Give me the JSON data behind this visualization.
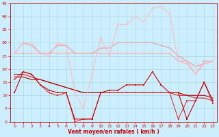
{
  "xlabel": "Vent moyen/en rafales ( km/h )",
  "bg_color": "#cceeff",
  "grid_color": "#aadddd",
  "xlim": [
    -0.5,
    23.5
  ],
  "ylim": [
    0,
    45
  ],
  "yticks": [
    0,
    5,
    10,
    15,
    20,
    25,
    30,
    35,
    40,
    45
  ],
  "xticks": [
    0,
    1,
    2,
    3,
    4,
    5,
    6,
    7,
    8,
    9,
    10,
    11,
    12,
    13,
    14,
    15,
    16,
    17,
    18,
    19,
    20,
    21,
    22,
    23
  ],
  "series": [
    {
      "x": [
        0,
        1,
        2,
        3,
        4,
        5,
        6,
        7,
        8,
        9,
        10,
        11,
        12,
        13,
        14,
        15,
        16,
        17,
        18,
        19,
        20,
        21,
        22,
        23
      ],
      "y": [
        11,
        19,
        18,
        14,
        12,
        11,
        11,
        1,
        1,
        1,
        11,
        12,
        12,
        14,
        14,
        14,
        19,
        14,
        11,
        11,
        1,
        8,
        15,
        8
      ],
      "color": "#cc0000",
      "lw": 0.8,
      "marker": "s",
      "ms": 1.8,
      "zorder": 5
    },
    {
      "x": [
        0,
        1,
        2,
        3,
        4,
        5,
        6,
        7,
        8,
        9,
        10,
        11,
        12,
        13,
        14,
        15,
        16,
        17,
        18,
        19,
        20,
        21,
        22,
        23
      ],
      "y": [
        26,
        26,
        26,
        26,
        26,
        26,
        26,
        26,
        26,
        26,
        26,
        26,
        26,
        26,
        26,
        26,
        26,
        26,
        26,
        23,
        23,
        18,
        23,
        23
      ],
      "color": "#ffaaaa",
      "lw": 0.8,
      "marker": "s",
      "ms": 1.8,
      "zorder": 4
    },
    {
      "x": [
        0,
        1,
        2,
        3,
        4,
        5,
        6,
        7,
        8,
        9,
        10,
        11,
        12,
        13,
        14,
        15,
        16,
        17,
        18,
        19,
        20,
        21,
        22,
        23
      ],
      "y": [
        18,
        18,
        17,
        16,
        15,
        14,
        13,
        12,
        11,
        11,
        11,
        11,
        11,
        11,
        11,
        11,
        11,
        11,
        11,
        10,
        10,
        9,
        9,
        8
      ],
      "color": "#dd2222",
      "lw": 0.8,
      "marker": null,
      "ms": 0,
      "zorder": 3
    },
    {
      "x": [
        0,
        1,
        2,
        3,
        4,
        5,
        6,
        7,
        8,
        9,
        10,
        11,
        12,
        13,
        14,
        15,
        16,
        17,
        18,
        19,
        20,
        21,
        22,
        23
      ],
      "y": [
        17,
        17,
        16,
        16,
        15,
        14,
        13,
        12,
        11,
        11,
        11,
        11,
        11,
        11,
        11,
        11,
        11,
        11,
        11,
        11,
        10,
        10,
        10,
        9
      ],
      "color": "#aa0000",
      "lw": 0.8,
      "marker": null,
      "ms": 0,
      "zorder": 3
    },
    {
      "x": [
        0,
        1,
        2,
        3,
        4,
        5,
        6,
        7,
        8,
        9,
        10,
        11,
        12,
        13,
        14,
        15,
        16,
        17,
        18,
        19,
        20,
        21,
        22,
        23
      ],
      "y": [
        16,
        19,
        18,
        14,
        11,
        10,
        11,
        0,
        1,
        1,
        11,
        11,
        11,
        11,
        11,
        11,
        11,
        11,
        11,
        1,
        8,
        8,
        15,
        7
      ],
      "color": "#dd3333",
      "lw": 0.8,
      "marker": "s",
      "ms": 1.8,
      "zorder": 4
    },
    {
      "x": [
        0,
        1,
        2,
        3,
        4,
        5,
        6,
        7,
        8,
        9,
        10,
        11,
        12,
        13,
        14,
        15,
        16,
        17,
        18,
        19,
        20,
        21,
        22,
        23
      ],
      "y": [
        26,
        30,
        30,
        26,
        25,
        30,
        29,
        11,
        5,
        18,
        32,
        25,
        37,
        37,
        40,
        38,
        43,
        44,
        41,
        23,
        22,
        18,
        22,
        23
      ],
      "color": "#ffbbbb",
      "lw": 0.8,
      "marker": "s",
      "ms": 1.8,
      "zorder": 4
    },
    {
      "x": [
        0,
        1,
        2,
        3,
        4,
        5,
        6,
        7,
        8,
        9,
        10,
        11,
        12,
        13,
        14,
        15,
        16,
        17,
        18,
        19,
        20,
        21,
        22,
        23
      ],
      "y": [
        26,
        30,
        29,
        26,
        26,
        29,
        29,
        26,
        26,
        26,
        28,
        28,
        30,
        30,
        30,
        30,
        30,
        29,
        28,
        25,
        23,
        21,
        22,
        23
      ],
      "color": "#ee9999",
      "lw": 0.8,
      "marker": null,
      "ms": 0,
      "zorder": 3
    }
  ]
}
